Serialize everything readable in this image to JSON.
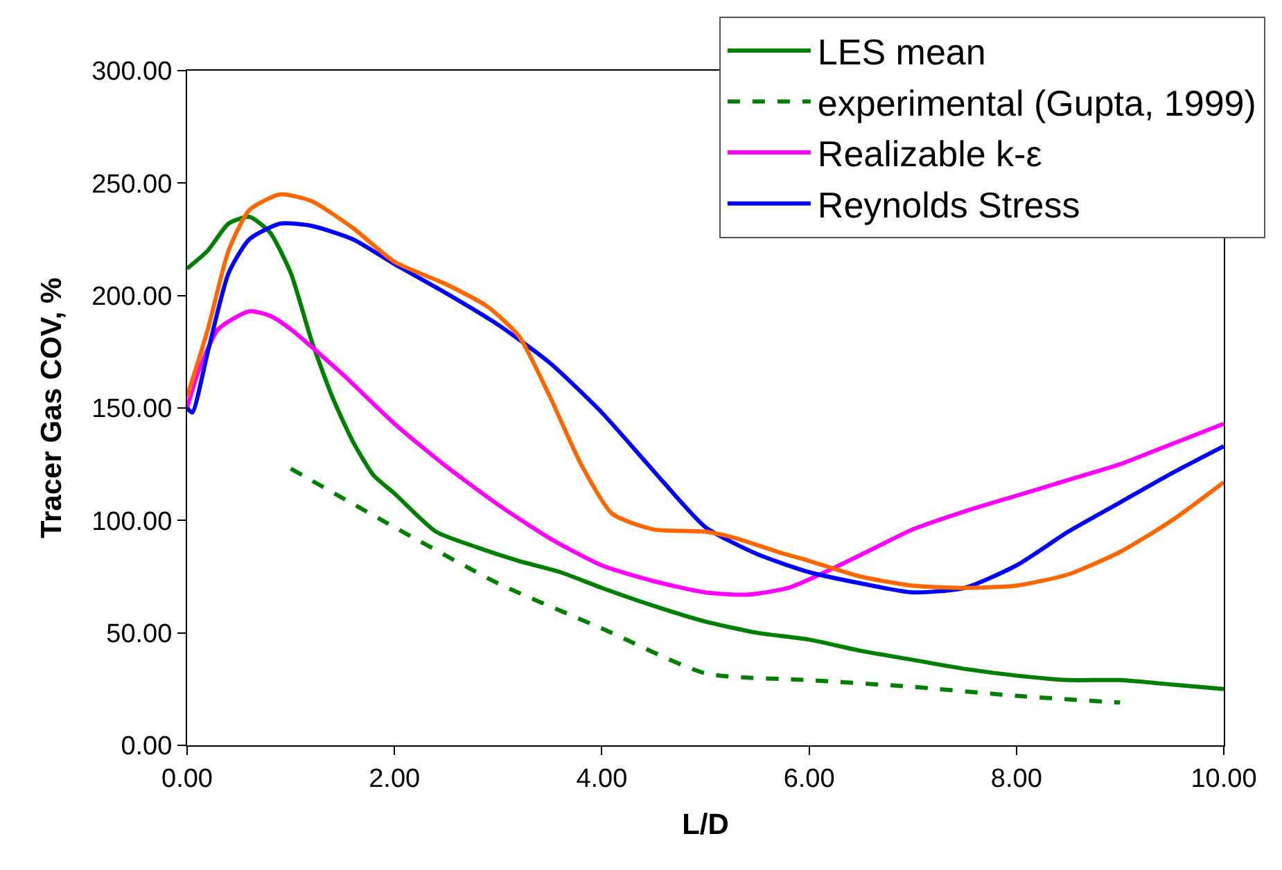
{
  "chart_data": {
    "type": "line",
    "xlabel": "L/D",
    "ylabel": "Tracer Gas COV, %",
    "xlim": [
      0,
      10
    ],
    "ylim": [
      0,
      300
    ],
    "xticks": [
      {
        "value": 0,
        "label": "0.00"
      },
      {
        "value": 2,
        "label": "2.00"
      },
      {
        "value": 4,
        "label": "4.00"
      },
      {
        "value": 6,
        "label": "6.00"
      },
      {
        "value": 8,
        "label": "8.00"
      },
      {
        "value": 10,
        "label": "10.00"
      }
    ],
    "yticks": [
      {
        "value": 0,
        "label": "0.00"
      },
      {
        "value": 50,
        "label": "50.00"
      },
      {
        "value": 100,
        "label": "100.00"
      },
      {
        "value": 150,
        "label": "150.00"
      },
      {
        "value": 200,
        "label": "200.00"
      },
      {
        "value": 250,
        "label": "250.00"
      },
      {
        "value": 300,
        "label": "300.00"
      }
    ],
    "legend": "top right",
    "marker": "none",
    "series": [
      {
        "name": "LES mean",
        "color": "#008000",
        "line_style": "solid",
        "x": [
          0,
          0.2,
          0.4,
          0.6,
          0.8,
          1.0,
          1.2,
          1.4,
          1.6,
          1.8,
          2.0,
          2.4,
          2.8,
          3.2,
          3.6,
          4.0,
          4.5,
          5.0,
          5.5,
          6.0,
          6.5,
          7.0,
          7.5,
          8.0,
          8.5,
          9.0,
          9.5,
          10
        ],
        "values": [
          212,
          220,
          232,
          235,
          228,
          210,
          180,
          155,
          135,
          120,
          112,
          95,
          88,
          82,
          77,
          70,
          62,
          55,
          50,
          47,
          42,
          38,
          34,
          31,
          29,
          29,
          27,
          25
        ]
      },
      {
        "name": "experimental (Gupta, 1999)",
        "color": "#008000",
        "line_style": "dashed",
        "x": [
          1,
          2,
          3,
          4,
          5,
          6,
          7,
          8,
          9
        ],
        "values": [
          123,
          97,
          72,
          52,
          32,
          29,
          26,
          22,
          19
        ]
      },
      {
        "name": "Realizable k-ε",
        "color": "#ff00ff",
        "line_style": "solid",
        "x": [
          0,
          0.1,
          0.3,
          0.6,
          0.8,
          1.0,
          1.5,
          2.0,
          2.5,
          3.0,
          3.5,
          4.0,
          4.5,
          5.0,
          5.4,
          5.8,
          6.2,
          6.6,
          7.0,
          7.5,
          8.0,
          8.5,
          9.0,
          9.5,
          10
        ],
        "values": [
          150,
          165,
          185,
          193,
          191,
          185,
          165,
          143,
          124,
          107,
          92,
          80,
          73,
          68,
          67,
          70,
          78,
          87,
          96,
          104,
          111,
          118,
          125,
          134,
          143
        ]
      },
      {
        "name": "Reynolds Stress",
        "color": "#0000ff",
        "line_style": "solid",
        "x": [
          0,
          0.05,
          0.2,
          0.4,
          0.6,
          0.9,
          1.2,
          1.6,
          2.0,
          2.5,
          3.0,
          3.5,
          4.0,
          4.5,
          5.0,
          5.5,
          6.0,
          6.5,
          7.0,
          7.5,
          8.0,
          8.5,
          9.0,
          9.5,
          10
        ],
        "values": [
          150,
          148,
          175,
          210,
          225,
          232,
          231,
          225,
          214,
          201,
          187,
          170,
          148,
          122,
          97,
          85,
          77,
          72,
          68,
          70,
          80,
          95,
          108,
          121,
          133
        ]
      },
      {
        "color": "#ff6600",
        "line_style": "solid",
        "x": [
          0,
          0.2,
          0.4,
          0.6,
          0.9,
          1.2,
          1.6,
          2.0,
          2.5,
          2.9,
          3.2,
          3.5,
          3.8,
          4.1,
          4.5,
          5.0,
          5.3,
          5.7,
          6.0,
          6.5,
          7.0,
          7.5,
          8.0,
          8.5,
          9.0,
          9.5,
          10
        ],
        "values": [
          155,
          185,
          220,
          238,
          245,
          242,
          230,
          215,
          205,
          195,
          182,
          155,
          125,
          103,
          96,
          95,
          92,
          86,
          82,
          75,
          71,
          70,
          71,
          76,
          86,
          100,
          117
        ]
      }
    ]
  }
}
